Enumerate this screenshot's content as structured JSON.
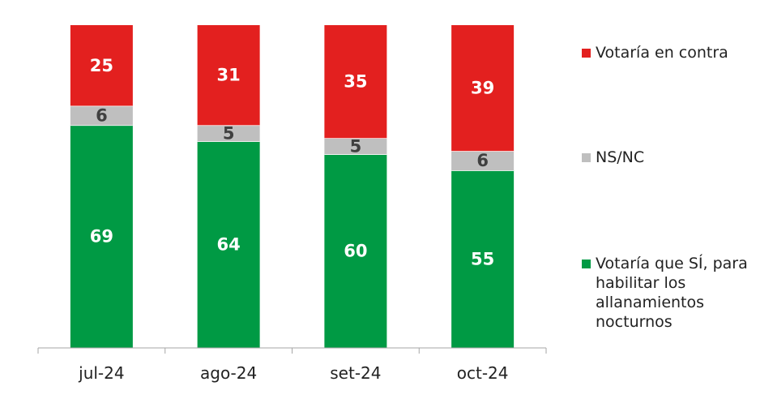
{
  "chart_data": {
    "type": "bar",
    "stacked": true,
    "categories": [
      "jul-24",
      "ago-24",
      "set-24",
      "oct-24"
    ],
    "series": [
      {
        "name": "Votaría que SÍ, para habilitar los allanamientos nocturnos",
        "color": "#009a44",
        "values": [
          69,
          64,
          60,
          55
        ]
      },
      {
        "name": "NS/NC",
        "color": "#bfbfbf",
        "values": [
          6,
          5,
          5,
          6
        ]
      },
      {
        "name": "Votaría en contra",
        "color": "#e3201f",
        "values": [
          25,
          31,
          35,
          39
        ]
      }
    ],
    "ylim": [
      0,
      100
    ],
    "grid": false,
    "legend_position": "right",
    "data_labels": true,
    "label_colors": {
      "light": "#ffffff",
      "dark": "#404040"
    }
  },
  "legend": [
    {
      "label": "Votaría en contra",
      "color": "#e3201f"
    },
    {
      "label": "NS/NC",
      "color": "#bfbfbf"
    },
    {
      "label": "Votaría que SÍ, para habilitar los allanamientos nocturnos",
      "color": "#009a44"
    }
  ]
}
